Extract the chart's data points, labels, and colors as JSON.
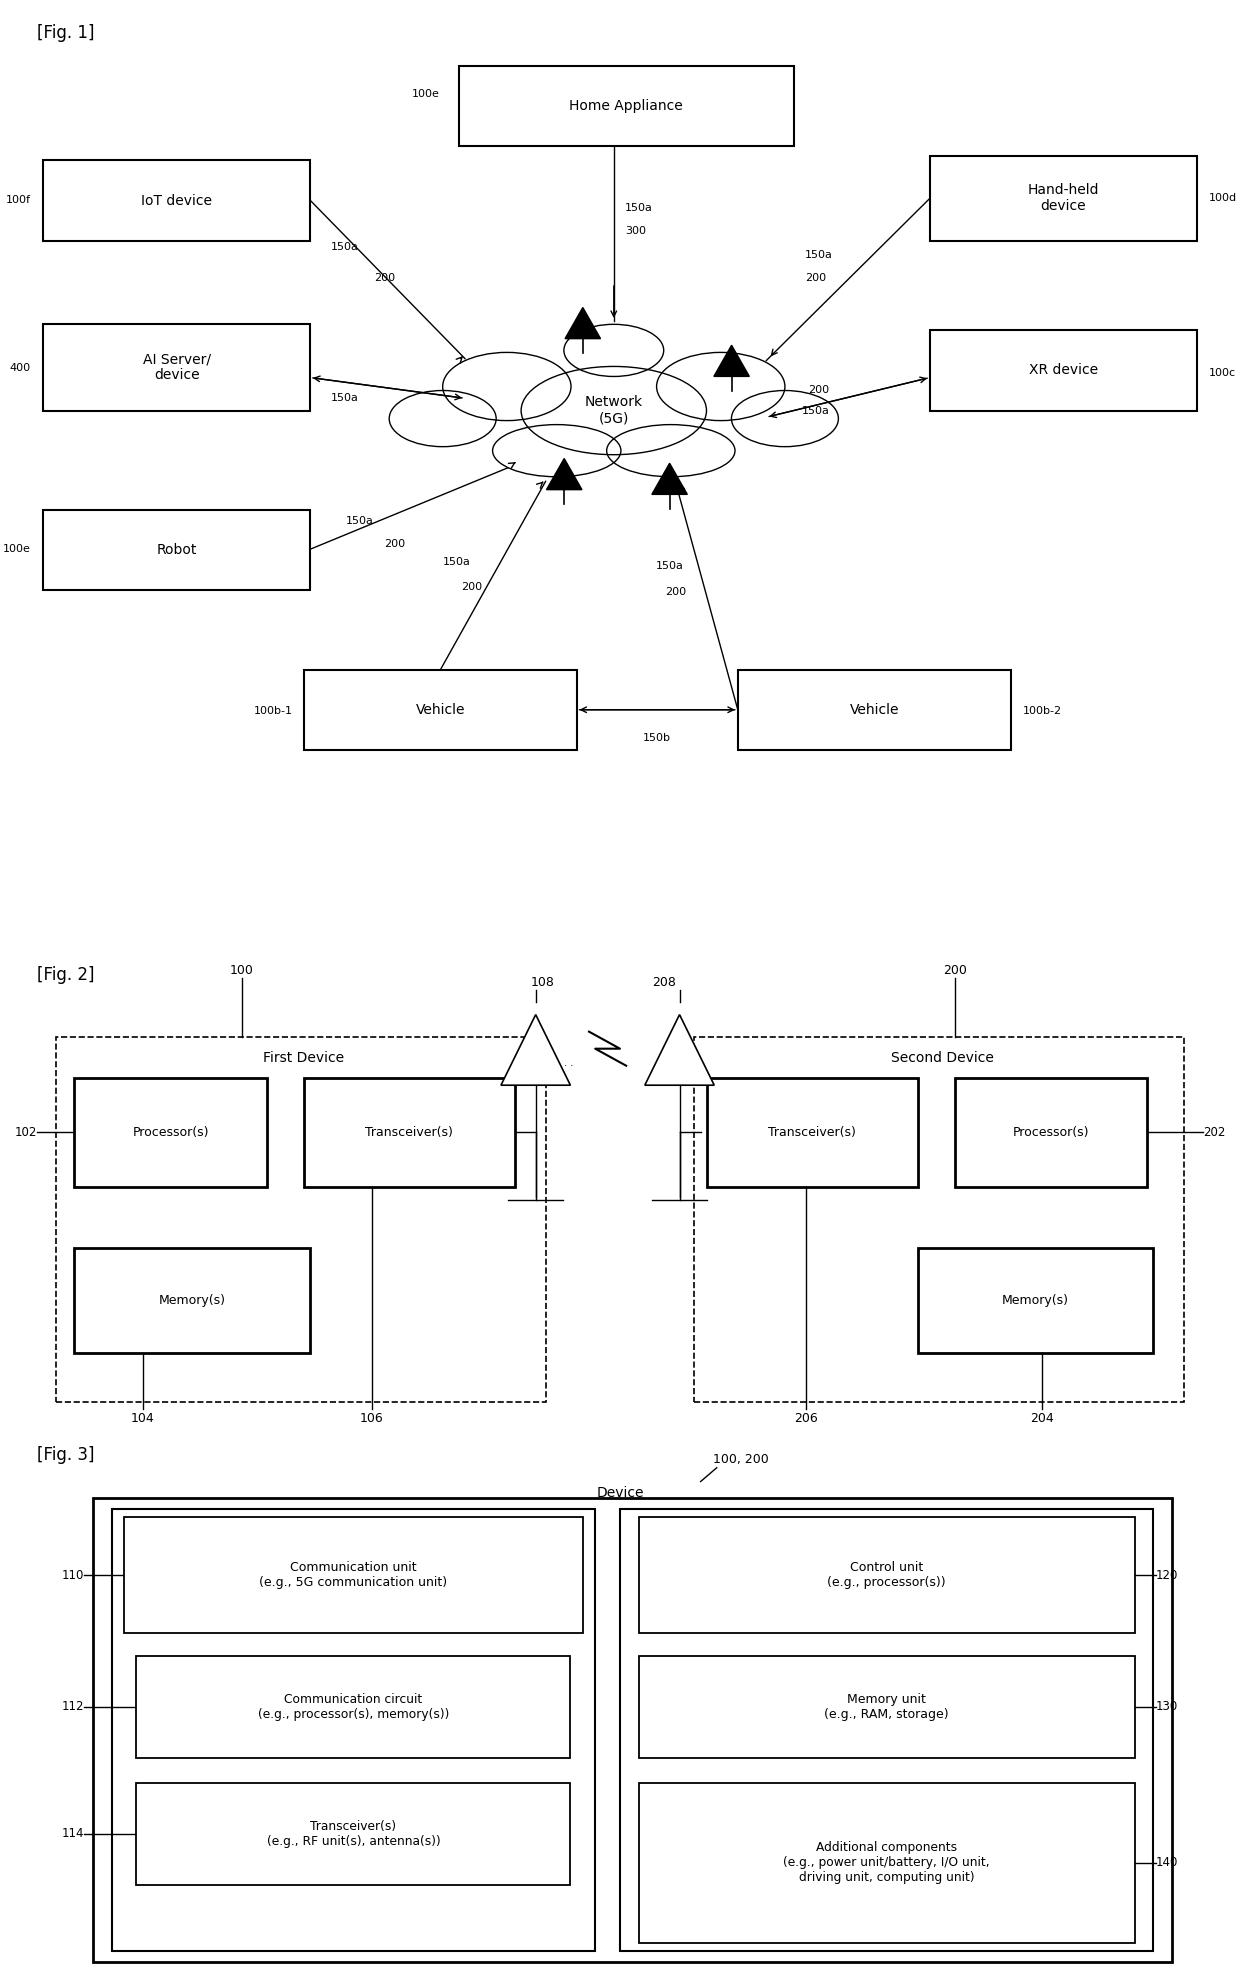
{
  "bg_color": "#ffffff",
  "fig1_label": "[Fig. 1]",
  "fig2_label": "[Fig. 2]",
  "fig3_label": "[Fig. 3]"
}
